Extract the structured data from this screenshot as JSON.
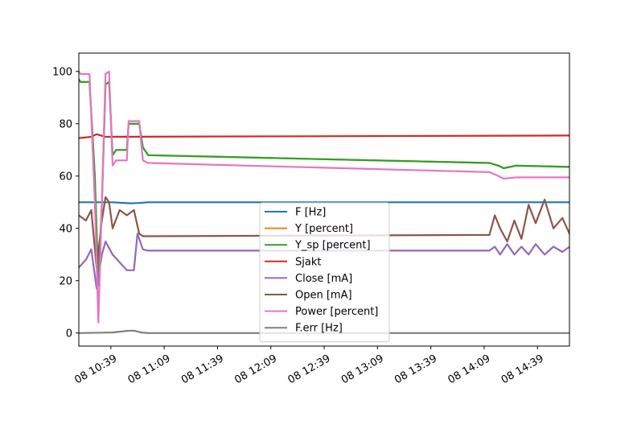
{
  "chart_data": {
    "type": "line",
    "title": "",
    "xlabel": "",
    "ylabel": "",
    "x_unit": "time (day 08), HH:MM",
    "xlim": [
      "10:21",
      "14:57"
    ],
    "ylim": [
      -5,
      107
    ],
    "x_ticks": [
      "08 10:39",
      "08 11:09",
      "08 11:39",
      "08 12:09",
      "08 12:39",
      "08 13:09",
      "08 13:39",
      "08 14:09",
      "08 14:39"
    ],
    "y_ticks": [
      0,
      20,
      40,
      60,
      80,
      100
    ],
    "grid": false,
    "legend_position": "lower center",
    "series": [
      {
        "name": "F [Hz]",
        "color": "#1f77b4",
        "points": [
          [
            "10:21",
            50
          ],
          [
            "10:40",
            50
          ],
          [
            "10:50",
            49.6
          ],
          [
            "10:55",
            49.7
          ],
          [
            "11:00",
            50
          ],
          [
            "14:57",
            50
          ]
        ]
      },
      {
        "name": "Y [percent]",
        "color": "#ff7f0e",
        "points": [
          [
            "10:21",
            97
          ],
          [
            "10:22",
            96
          ],
          [
            "10:27",
            96
          ],
          [
            "10:30",
            60
          ],
          [
            "10:32",
            18
          ],
          [
            "10:34",
            50
          ],
          [
            "10:36",
            95
          ],
          [
            "10:38",
            96
          ],
          [
            "10:40",
            68
          ],
          [
            "10:42",
            70
          ],
          [
            "10:48",
            70
          ],
          [
            "10:49",
            80
          ],
          [
            "10:55",
            80
          ],
          [
            "10:57",
            71
          ],
          [
            "11:00",
            68
          ],
          [
            "14:12",
            65
          ],
          [
            "14:17",
            64
          ],
          [
            "14:20",
            63
          ],
          [
            "14:27",
            64
          ],
          [
            "14:57",
            63.5
          ]
        ]
      },
      {
        "name": "Y_sp [percent]",
        "color": "#2ca02c",
        "points": [
          [
            "10:21",
            97
          ],
          [
            "10:22",
            96
          ],
          [
            "10:27",
            96
          ],
          [
            "10:30",
            60
          ],
          [
            "10:32",
            18
          ],
          [
            "10:34",
            50
          ],
          [
            "10:36",
            95
          ],
          [
            "10:38",
            96
          ],
          [
            "10:40",
            68
          ],
          [
            "10:42",
            70
          ],
          [
            "10:48",
            70
          ],
          [
            "10:49",
            80
          ],
          [
            "10:55",
            80
          ],
          [
            "10:57",
            71
          ],
          [
            "11:00",
            68
          ],
          [
            "14:12",
            65
          ],
          [
            "14:17",
            64
          ],
          [
            "14:20",
            63
          ],
          [
            "14:27",
            64
          ],
          [
            "14:57",
            63.5
          ]
        ]
      },
      {
        "name": "Sjakt",
        "color": "#d62728",
        "points": [
          [
            "10:21",
            74.5
          ],
          [
            "10:28",
            75
          ],
          [
            "10:31",
            76
          ],
          [
            "10:36",
            75
          ],
          [
            "14:57",
            75.5
          ]
        ]
      },
      {
        "name": "Close [mA]",
        "color": "#9467bd",
        "points": [
          [
            "10:21",
            25
          ],
          [
            "10:25",
            28
          ],
          [
            "10:28",
            32
          ],
          [
            "10:31",
            17
          ],
          [
            "10:34",
            30
          ],
          [
            "10:36",
            35
          ],
          [
            "10:40",
            30
          ],
          [
            "10:44",
            27
          ],
          [
            "10:48",
            24
          ],
          [
            "10:52",
            24
          ],
          [
            "10:54",
            38
          ],
          [
            "10:57",
            32
          ],
          [
            "11:00",
            31.5
          ],
          [
            "14:12",
            31.5
          ],
          [
            "14:15",
            33
          ],
          [
            "14:18",
            30
          ],
          [
            "14:22",
            34
          ],
          [
            "14:26",
            30
          ],
          [
            "14:30",
            33
          ],
          [
            "14:34",
            30
          ],
          [
            "14:38",
            34
          ],
          [
            "14:43",
            30
          ],
          [
            "14:48",
            33
          ],
          [
            "14:53",
            31
          ],
          [
            "14:57",
            33
          ]
        ]
      },
      {
        "name": "Open [mA]",
        "color": "#8c564b",
        "points": [
          [
            "10:21",
            45
          ],
          [
            "10:25",
            43
          ],
          [
            "10:28",
            47
          ],
          [
            "10:31",
            25
          ],
          [
            "10:34",
            43
          ],
          [
            "10:36",
            52
          ],
          [
            "10:38",
            50
          ],
          [
            "10:40",
            40
          ],
          [
            "10:44",
            47
          ],
          [
            "10:48",
            45
          ],
          [
            "10:52",
            47
          ],
          [
            "10:55",
            38
          ],
          [
            "10:57",
            37
          ],
          [
            "11:00",
            37
          ],
          [
            "14:12",
            37.5
          ],
          [
            "14:15",
            45
          ],
          [
            "14:18",
            40
          ],
          [
            "14:22",
            35
          ],
          [
            "14:26",
            43
          ],
          [
            "14:30",
            36
          ],
          [
            "14:34",
            49
          ],
          [
            "14:38",
            42
          ],
          [
            "14:43",
            51
          ],
          [
            "14:48",
            40
          ],
          [
            "14:53",
            44
          ],
          [
            "14:57",
            38
          ]
        ]
      },
      {
        "name": "Power [percent]",
        "color": "#e377c2",
        "points": [
          [
            "10:21",
            100
          ],
          [
            "10:22",
            99
          ],
          [
            "10:27",
            99
          ],
          [
            "10:30",
            50
          ],
          [
            "10:32",
            4
          ],
          [
            "10:34",
            50
          ],
          [
            "10:36",
            99
          ],
          [
            "10:38",
            100
          ],
          [
            "10:40",
            64
          ],
          [
            "10:42",
            66
          ],
          [
            "10:48",
            66
          ],
          [
            "10:49",
            81
          ],
          [
            "10:55",
            81
          ],
          [
            "10:57",
            66
          ],
          [
            "11:00",
            65
          ],
          [
            "14:12",
            61.5
          ],
          [
            "14:17",
            60
          ],
          [
            "14:20",
            59
          ],
          [
            "14:27",
            59.5
          ],
          [
            "14:57",
            59.5
          ]
        ]
      },
      {
        "name": "F.err [Hz]",
        "color": "#7f7f7f",
        "points": [
          [
            "10:21",
            0
          ],
          [
            "10:40",
            0.2
          ],
          [
            "10:48",
            0.8
          ],
          [
            "10:52",
            0.9
          ],
          [
            "10:56",
            0.2
          ],
          [
            "11:00",
            0
          ],
          [
            "14:57",
            0
          ]
        ]
      }
    ]
  }
}
